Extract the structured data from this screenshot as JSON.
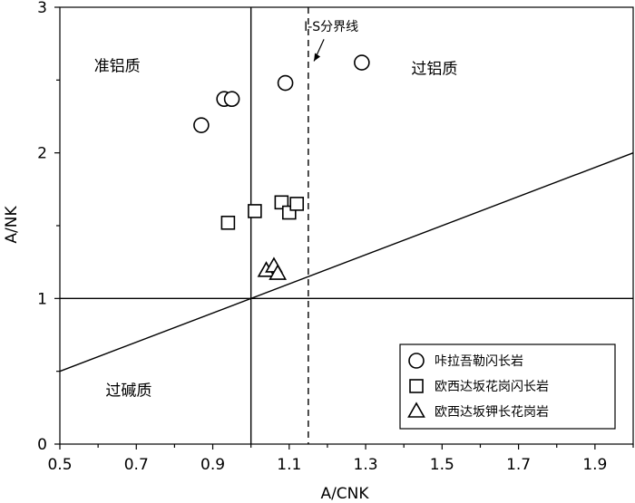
{
  "chart_data": {
    "type": "scatter",
    "xlabel": "A/CNK",
    "ylabel": "A/NK",
    "xlim": [
      0.5,
      2.0
    ],
    "ylim": [
      0,
      3
    ],
    "xticks": [
      0.5,
      0.7,
      0.9,
      1.1,
      1.3,
      1.5,
      1.7,
      1.9
    ],
    "xtick_labels": [
      "0.5",
      "0.7",
      "0.9",
      "1.1",
      "1.3",
      "1.5",
      "1.7",
      "1.9"
    ],
    "yticks": [
      0,
      1,
      2,
      3
    ],
    "ytick_labels": [
      "0",
      "1",
      "2",
      "3"
    ],
    "grid": false,
    "legend_position": "bottom-right",
    "series": [
      {
        "name": "咔拉吾勒闪长岩",
        "marker": "circle",
        "x": [
          0.87,
          0.93,
          0.95,
          1.09,
          1.29
        ],
        "y": [
          2.19,
          2.37,
          2.37,
          2.48,
          2.62
        ]
      },
      {
        "name": "欧西达坂花岗闪长岩",
        "marker": "square",
        "x": [
          0.94,
          1.01,
          1.08,
          1.1,
          1.12
        ],
        "y": [
          1.52,
          1.6,
          1.66,
          1.59,
          1.65
        ]
      },
      {
        "name": "欧西达坂钾长花岗岩",
        "marker": "triangle",
        "x": [
          1.04,
          1.06,
          1.07
        ],
        "y": [
          1.19,
          1.22,
          1.17
        ]
      }
    ],
    "reference_lines": [
      {
        "type": "vertical",
        "x": 1.0
      },
      {
        "type": "horizontal",
        "y": 1.0
      },
      {
        "type": "vertical-dashed",
        "x": 1.15
      },
      {
        "type": "diagonal",
        "from": [
          0.5,
          0.5
        ],
        "to": [
          2.0,
          2.0
        ]
      }
    ],
    "region_labels": [
      {
        "text": "准铝质",
        "x": 0.65,
        "y": 2.6
      },
      {
        "text": "过铝质",
        "x": 1.48,
        "y": 2.58
      },
      {
        "text": "过碱质",
        "x": 0.68,
        "y": 0.37
      }
    ],
    "annotations": [
      {
        "text": "I-S分界线",
        "x": 1.21,
        "y": 2.87
      }
    ]
  }
}
